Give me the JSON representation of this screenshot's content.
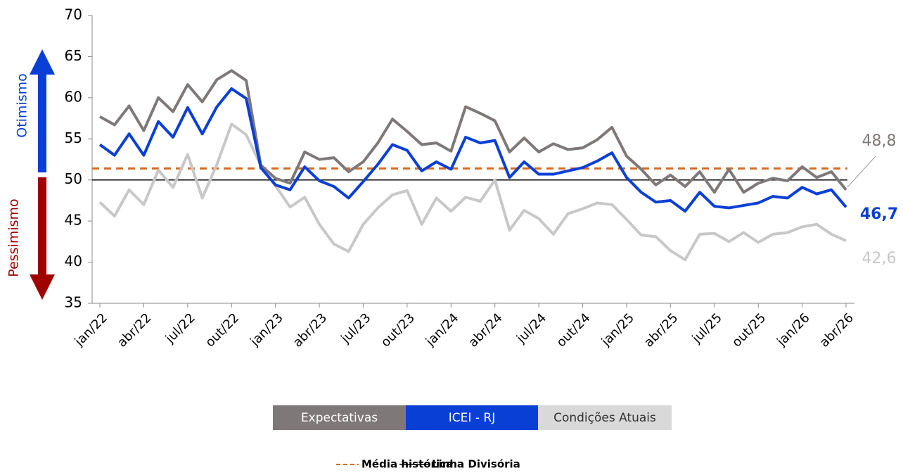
{
  "chart_data": {
    "type": "line",
    "categories": [
      "jan/22",
      null,
      null,
      "abr/22",
      null,
      null,
      "jul/22",
      null,
      null,
      "out/22",
      null,
      null,
      "jan/23",
      null,
      null,
      "abr/23",
      null,
      null,
      "jul/23",
      null,
      null,
      "out/23",
      null,
      null,
      "jan/24",
      null,
      null,
      "abr/24",
      null,
      null,
      "jul/24",
      null,
      null,
      "out/24",
      null,
      null,
      "jan/25",
      null,
      null,
      "abr/25",
      null,
      null,
      "jul/25",
      null,
      null,
      "out/25",
      null,
      null,
      "jan/26",
      null,
      null,
      "abr/26"
    ],
    "series": [
      {
        "name": "Expectativas",
        "color": "#7f7878",
        "legend_text_color": "#ffffff",
        "end_label": "48,8",
        "values": [
          57.7,
          56.7,
          59,
          56,
          60,
          58.3,
          61.6,
          59.5,
          62.2,
          63.3,
          62.1,
          51.8,
          50.2,
          49.6,
          53.4,
          52.5,
          52.7,
          51,
          52.2,
          54.5,
          57.4,
          55.9,
          54.3,
          54.5,
          53.5,
          58.9,
          58.1,
          57.2,
          53.4,
          55.1,
          53.4,
          54.4,
          53.7,
          53.9,
          54.9,
          56.4,
          52.9,
          51.3,
          49.4,
          50.6,
          49.2,
          51,
          48.5,
          51.3,
          48.5,
          49.6,
          50.2,
          49.9,
          51.6,
          50.3,
          51,
          48.8
        ]
      },
      {
        "name": "ICEI - RJ",
        "color": "#0a3fd6",
        "legend_text_color": "#ffffff",
        "end_label": "46,7",
        "values": [
          54.3,
          53,
          55.6,
          53,
          57.1,
          55.2,
          58.8,
          55.6,
          58.9,
          61.1,
          59.9,
          51.5,
          49.4,
          48.8,
          51.6,
          49.9,
          49.2,
          47.8,
          49.8,
          51.9,
          54.3,
          53.6,
          51.1,
          52.2,
          51.3,
          55.2,
          54.5,
          54.8,
          50.3,
          52.2,
          50.7,
          50.7,
          51.1,
          51.5,
          52.3,
          53.3,
          50.3,
          48.5,
          47.3,
          47.5,
          46.2,
          48.5,
          46.8,
          46.6,
          46.9,
          47.2,
          48,
          47.8,
          49.1,
          48.3,
          48.8,
          46.7
        ]
      },
      {
        "name": "Condições Atuais",
        "color": "#c8c8c8",
        "legend_color": "#d9d9d9",
        "legend_text_color": "#333333",
        "end_label": "42,6",
        "values": [
          47.3,
          45.6,
          48.8,
          47,
          51.2,
          49.1,
          53.1,
          47.8,
          51.9,
          56.8,
          55.5,
          51.8,
          49.3,
          46.7,
          47.9,
          44.6,
          42.2,
          41.3,
          44.6,
          46.6,
          48.2,
          48.7,
          44.6,
          47.8,
          46.2,
          47.9,
          47.4,
          50,
          43.9,
          46.3,
          45.3,
          43.4,
          45.9,
          46.5,
          47.2,
          47,
          45.2,
          43.3,
          43.1,
          41.4,
          40.3,
          43.4,
          43.5,
          42.5,
          43.6,
          42.4,
          43.4,
          43.6,
          44.3,
          44.6,
          43.4,
          42.6
        ]
      }
    ],
    "reference_lines": [
      {
        "name": "Média histórica",
        "value": 51.4,
        "color": "#d86b1f",
        "dashed": true
      },
      {
        "name": "Linha Divisória",
        "value": 50,
        "color": "#000000",
        "dashed": false
      }
    ],
    "annotations": {
      "optimism": "Otimismo",
      "pessimism": "Pessimismo"
    },
    "ylim": [
      35,
      70
    ],
    "yticks": [
      35,
      40,
      45,
      50,
      55,
      60,
      65,
      70
    ]
  }
}
